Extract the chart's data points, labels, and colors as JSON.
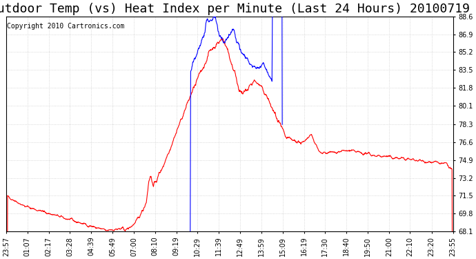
{
  "title": "Outdoor Temp (vs) Heat Index per Minute (Last 24 Hours) 20100719",
  "copyright_text": "Copyright 2010 Cartronics.com",
  "y_min": 68.1,
  "y_max": 88.6,
  "y_ticks": [
    68.1,
    69.8,
    71.5,
    73.2,
    74.9,
    76.6,
    78.3,
    80.1,
    81.8,
    83.5,
    85.2,
    86.9,
    88.6
  ],
  "x_tick_labels": [
    "23:57",
    "01:07",
    "02:17",
    "03:28",
    "04:39",
    "05:49",
    "07:00",
    "08:10",
    "09:19",
    "10:29",
    "11:39",
    "12:49",
    "13:59",
    "15:09",
    "16:19",
    "17:30",
    "18:40",
    "19:50",
    "21:00",
    "22:10",
    "23:20",
    "23:55"
  ],
  "bg_color": "#ffffff",
  "plot_bg_color": "#ffffff",
  "grid_color": "#cccccc",
  "red_color": "#ff0000",
  "blue_color": "#0000ff",
  "title_fontsize": 13,
  "tick_fontsize": 7,
  "copyright_fontsize": 7
}
